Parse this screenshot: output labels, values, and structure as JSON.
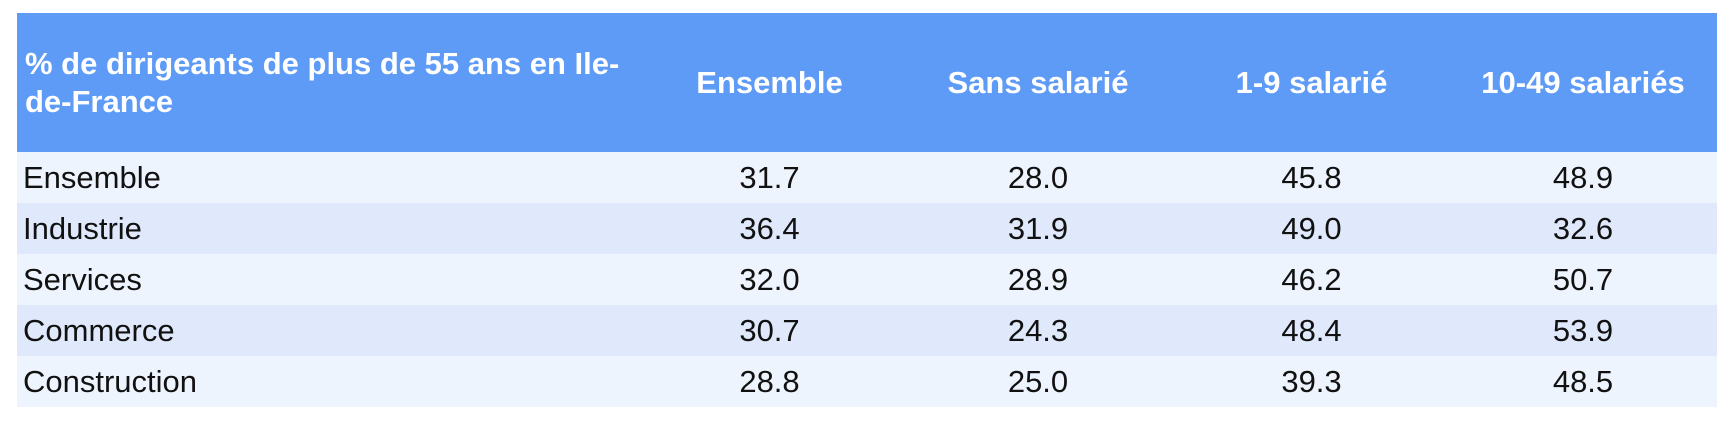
{
  "table": {
    "header": [
      "% de dirigeants de plus de 55 ans en Ile-de-France",
      "Ensemble",
      "Sans salarié",
      "1-9 salarié",
      "10-49 salariés"
    ],
    "rows": [
      [
        "Ensemble",
        "31.7",
        "28.0",
        "45.8",
        "48.9"
      ],
      [
        "Industrie",
        "36.4",
        "31.9",
        "49.0",
        "32.6"
      ],
      [
        "Services",
        "32.0",
        "28.9",
        "46.2",
        "50.7"
      ],
      [
        "Commerce",
        "30.7",
        "24.3",
        "48.4",
        "53.9"
      ],
      [
        "Construction",
        "28.8",
        "25.0",
        "39.3",
        "48.5"
      ]
    ]
  }
}
